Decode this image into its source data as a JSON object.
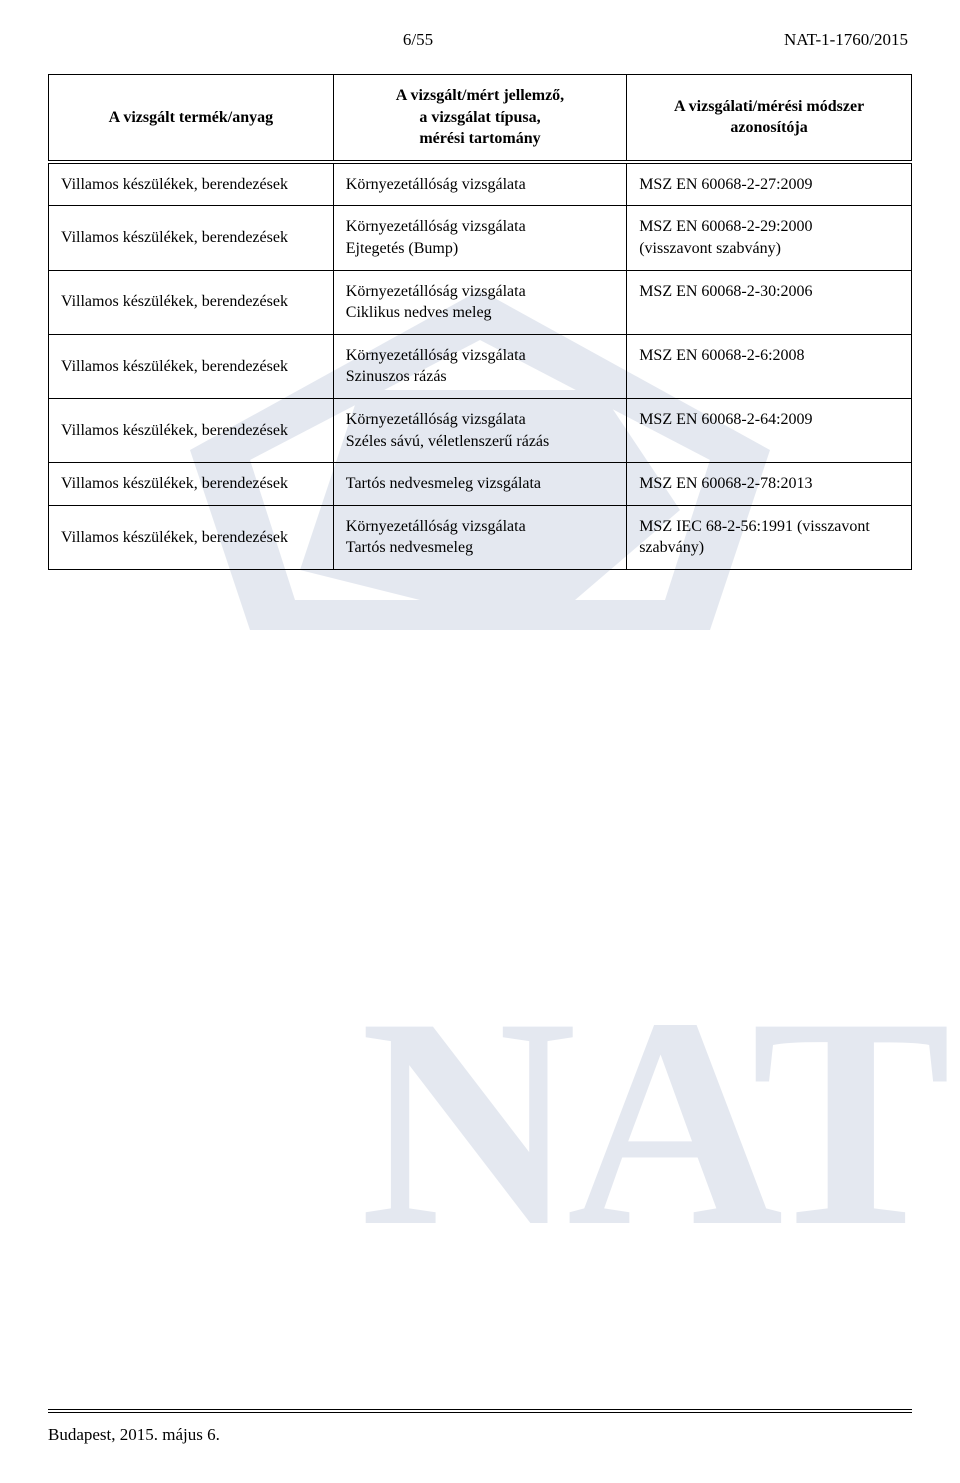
{
  "header": {
    "page_num": "6/55",
    "doc_ref": "NAT-1-1760/2015"
  },
  "table": {
    "columns": [
      "A vizsgált termék/anyag",
      "A vizsgált/mért jellemző,\na vizsgálat típusa,\nmérési tartomány",
      "A vizsgálati/mérési módszer\nazonosítója"
    ],
    "rows": [
      {
        "col1": "Villamos készülékek, berendezések",
        "col2": "Környezetállóság vizsgálata",
        "col3": "MSZ EN 60068-2-27:2009"
      },
      {
        "col1": "Villamos készülékek, berendezések",
        "col2": "Környezetállóság vizsgálata\nEjtegetés (Bump)",
        "col3": "MSZ EN 60068-2-29:2000\n(visszavont szabvány)"
      },
      {
        "col1": "Villamos készülékek, berendezések",
        "col2": "Környezetállóság vizsgálata\nCiklikus nedves meleg",
        "col3": "MSZ EN 60068-2-30:2006"
      },
      {
        "col1": "Villamos készülékek, berendezések",
        "col2": "Környezetállóság vizsgálata\nSzinuszos rázás",
        "col3": "MSZ EN 60068-2-6:2008"
      },
      {
        "col1": "Villamos készülékek, berendezések",
        "col2": "Környezetállóság vizsgálata\nSzéles sávú, véletlenszerű rázás",
        "col3": "MSZ EN 60068-2-64:2009"
      },
      {
        "col1": "Villamos készülékek, berendezések",
        "col2": "Tartós nedvesmeleg vizsgálata",
        "col3": "MSZ EN 60068-2-78:2013"
      },
      {
        "col1": "Villamos készülékek, berendezések",
        "col2": "Környezetállóság vizsgálata\nTartós nedvesmeleg",
        "col3": "MSZ IEC 68-2-56:1991 (visszavont szabvány)"
      }
    ],
    "col_widths": [
      "33%",
      "34%",
      "33%"
    ]
  },
  "footer": {
    "text": "Budapest, 2015. május 6."
  },
  "styling": {
    "font_family": "Times New Roman",
    "body_fontsize": 16,
    "header_fontsize": 17,
    "border_color": "#000000",
    "background_color": "#ffffff",
    "watermark_color": "#2a4a8a",
    "watermark_text": "NAT"
  }
}
